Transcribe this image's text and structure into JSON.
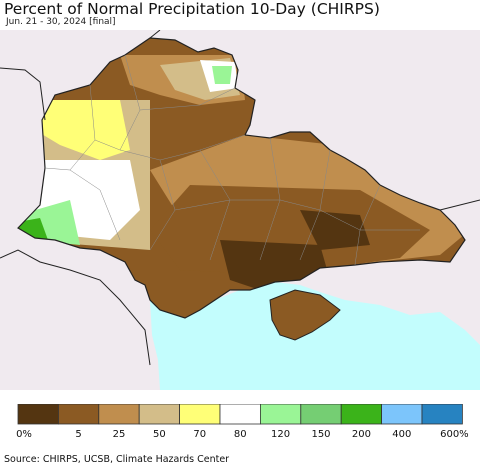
{
  "header": {
    "title": "Percent of Normal Precipitation 10-Day (CHIRPS)",
    "subtitle": "Jun. 21 - 30, 2024 [final]"
  },
  "legend": {
    "colors": [
      "#543511",
      "#8b5a23",
      "#c08e4e",
      "#d3bd89",
      "#ffff77",
      "#ffffff",
      "#9af596",
      "#75ce73",
      "#3bb31a",
      "#7cc5fb",
      "#2783c1"
    ],
    "labels": [
      "0%",
      "5",
      "25",
      "50",
      "70",
      "80",
      "120",
      "150",
      "200",
      "400",
      "600%"
    ]
  },
  "footer": {
    "source": "Source: CHIRPS, UCSB, Climate Hazards Center"
  }
}
